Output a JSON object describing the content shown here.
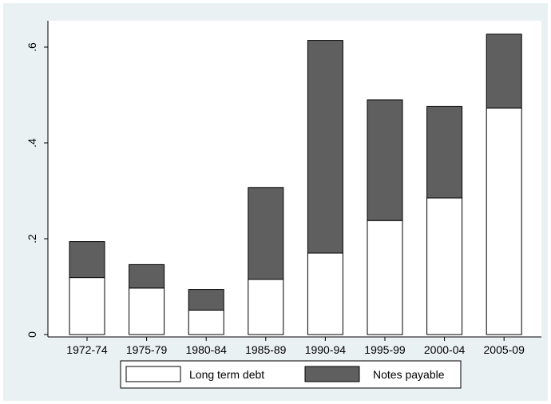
{
  "chart_data": {
    "type": "bar",
    "stacked": true,
    "categories": [
      "1972-74",
      "1975-79",
      "1980-84",
      "1985-89",
      "1990-94",
      "1995-99",
      "2000-04",
      "2005-09"
    ],
    "series": [
      {
        "name": "Long term debt",
        "values": [
          0.119,
          0.097,
          0.051,
          0.115,
          0.17,
          0.238,
          0.285,
          0.473
        ],
        "color": "#ffffff"
      },
      {
        "name": "Notes payable",
        "values": [
          0.075,
          0.049,
          0.043,
          0.192,
          0.444,
          0.252,
          0.191,
          0.154
        ],
        "color": "#5f5f5f"
      }
    ],
    "y_ticks": [
      0,
      0.2,
      0.4,
      0.6
    ],
    "y_tick_labels": [
      "0",
      ".2",
      ".4",
      ".6"
    ],
    "ylim": [
      0,
      0.6
    ],
    "title": "",
    "xlabel": "",
    "ylabel": "",
    "grid": false,
    "legend_position": "bottom"
  },
  "colors": {
    "figure_background": "#eaf1f3",
    "plot_background": "#ffffff",
    "bar_outline": "#000000"
  }
}
